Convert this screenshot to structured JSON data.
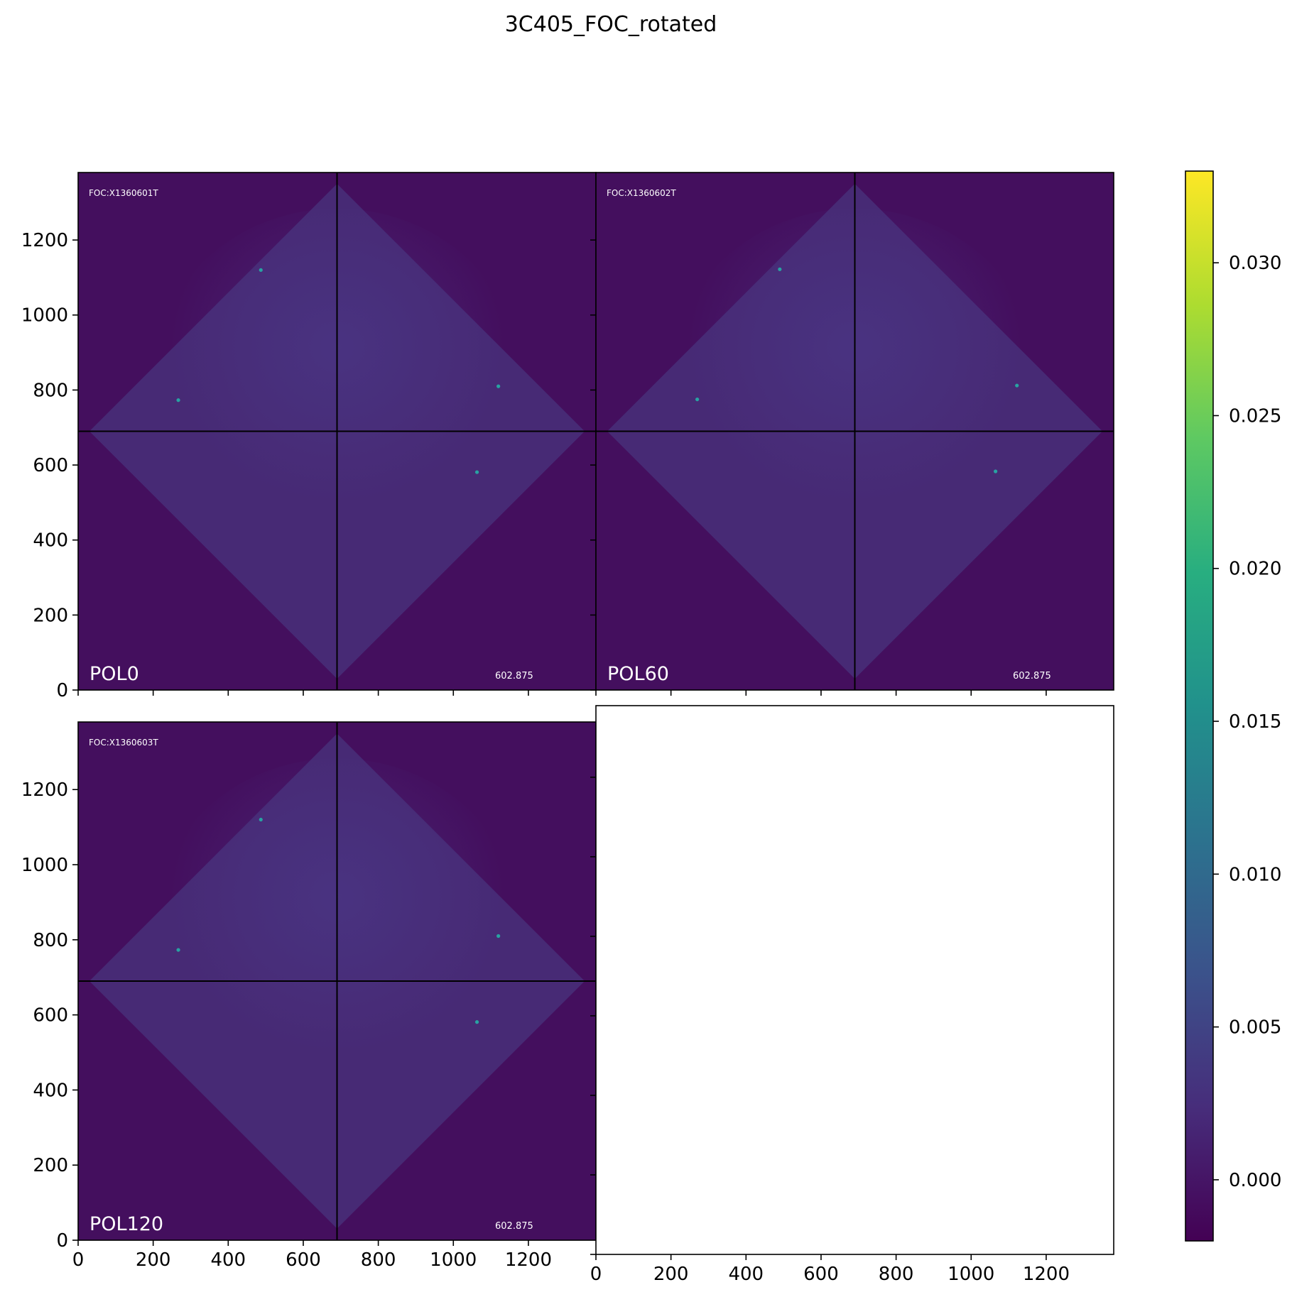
{
  "chart_data": {
    "type": "heatmap",
    "title": "3C405_FOC_rotated",
    "panels": [
      {
        "label": "POL0",
        "header": "FOC:X1360601T",
        "value_label": "602.875",
        "xlim": [
          0,
          1380
        ],
        "ylim": [
          0,
          1380
        ],
        "crosshair": [
          690,
          690
        ],
        "point_sources": [
          [
            487,
            1120
          ],
          [
            267,
            773
          ],
          [
            1120,
            810
          ],
          [
            1063,
            581
          ]
        ]
      },
      {
        "label": "POL60",
        "header": "FOC:X1360602T",
        "value_label": "602.875",
        "xlim": [
          0,
          1380
        ],
        "ylim": [
          0,
          1380
        ],
        "crosshair": [
          690,
          690
        ],
        "point_sources": [
          [
            490,
            1122
          ],
          [
            270,
            775
          ],
          [
            1122,
            812
          ],
          [
            1065,
            583
          ]
        ]
      },
      {
        "label": "POL120",
        "header": "FOC:X1360603T",
        "value_label": "602.875",
        "xlim": [
          0,
          1380
        ],
        "ylim": [
          0,
          1380
        ],
        "crosshair": [
          690,
          690
        ],
        "point_sources": [
          [
            487,
            1120
          ],
          [
            267,
            773
          ],
          [
            1120,
            810
          ],
          [
            1063,
            581
          ]
        ]
      },
      {
        "label": "",
        "header": "",
        "value_label": "",
        "xlim": [
          0,
          1380
        ],
        "ylim": [
          0,
          1380
        ],
        "empty": true
      }
    ],
    "x_ticks": [
      "0",
      "200",
      "400",
      "600",
      "800",
      "1000",
      "1200"
    ],
    "y_ticks": [
      "0",
      "200",
      "400",
      "600",
      "800",
      "1000",
      "1200"
    ],
    "colorbar": {
      "range": [
        -0.002,
        0.033
      ],
      "ticks": [
        "0.000",
        "0.005",
        "0.010",
        "0.015",
        "0.020",
        "0.025",
        "0.030"
      ],
      "tick_values": [
        0,
        0.005,
        0.01,
        0.015,
        0.02,
        0.025,
        0.03
      ],
      "colormap": "viridis"
    },
    "colors": {
      "background": "#440f5e",
      "diamond": "#472a75",
      "diamond_glow": "#483483",
      "source": "#29a2a2",
      "crosshair": "#000000"
    }
  }
}
